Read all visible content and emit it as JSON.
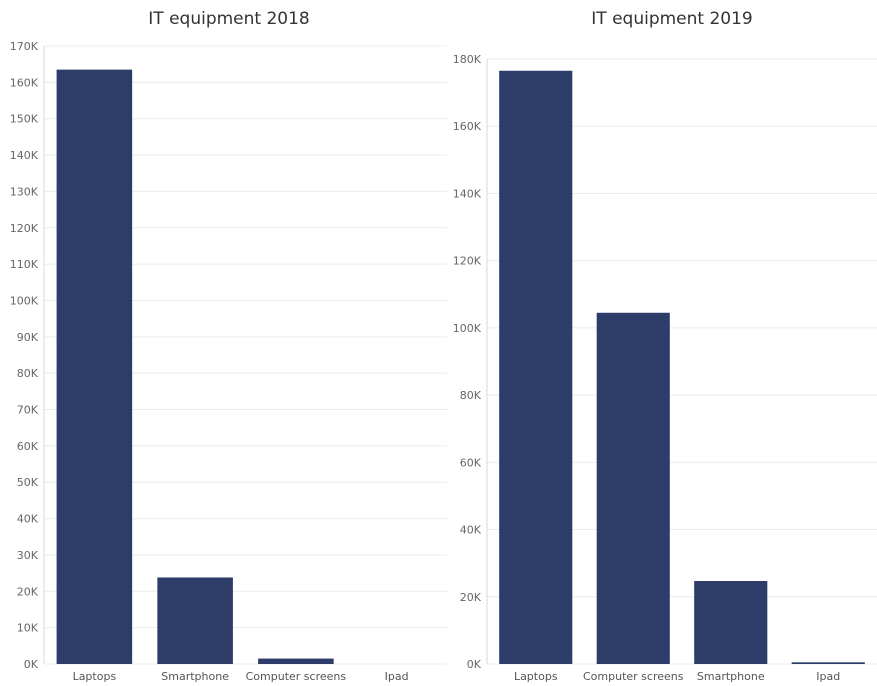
{
  "chart_data": [
    {
      "type": "bar",
      "title": "IT equipment 2018",
      "categories": [
        "Laptops",
        "Smartphone",
        "Computer screens",
        "Ipad"
      ],
      "values": [
        163500,
        23800,
        1500,
        0
      ],
      "ylim": [
        0,
        170000
      ],
      "yticks": [
        0,
        10000,
        20000,
        30000,
        40000,
        50000,
        60000,
        70000,
        80000,
        90000,
        100000,
        110000,
        120000,
        130000,
        140000,
        150000,
        160000,
        170000
      ],
      "ytick_labels": [
        "0K",
        "10K",
        "20K",
        "30K",
        "40K",
        "50K",
        "60K",
        "70K",
        "80K",
        "90K",
        "100K",
        "110K",
        "120K",
        "130K",
        "140K",
        "150K",
        "160K",
        "170K"
      ],
      "grid": true,
      "color": "#2d3c69"
    },
    {
      "type": "bar",
      "title": "IT equipment 2019",
      "categories": [
        "Laptops",
        "Computer screens",
        "Smartphone",
        "Ipad"
      ],
      "values": [
        176500,
        104500,
        24700,
        500
      ],
      "ylim": [
        0,
        180000
      ],
      "yticks": [
        0,
        20000,
        40000,
        60000,
        80000,
        100000,
        120000,
        140000,
        160000,
        180000
      ],
      "ytick_labels": [
        "0K",
        "20K",
        "40K",
        "60K",
        "80K",
        "100K",
        "120K",
        "140K",
        "160K",
        "180K"
      ],
      "grid": true,
      "color": "#2d3c69"
    }
  ]
}
